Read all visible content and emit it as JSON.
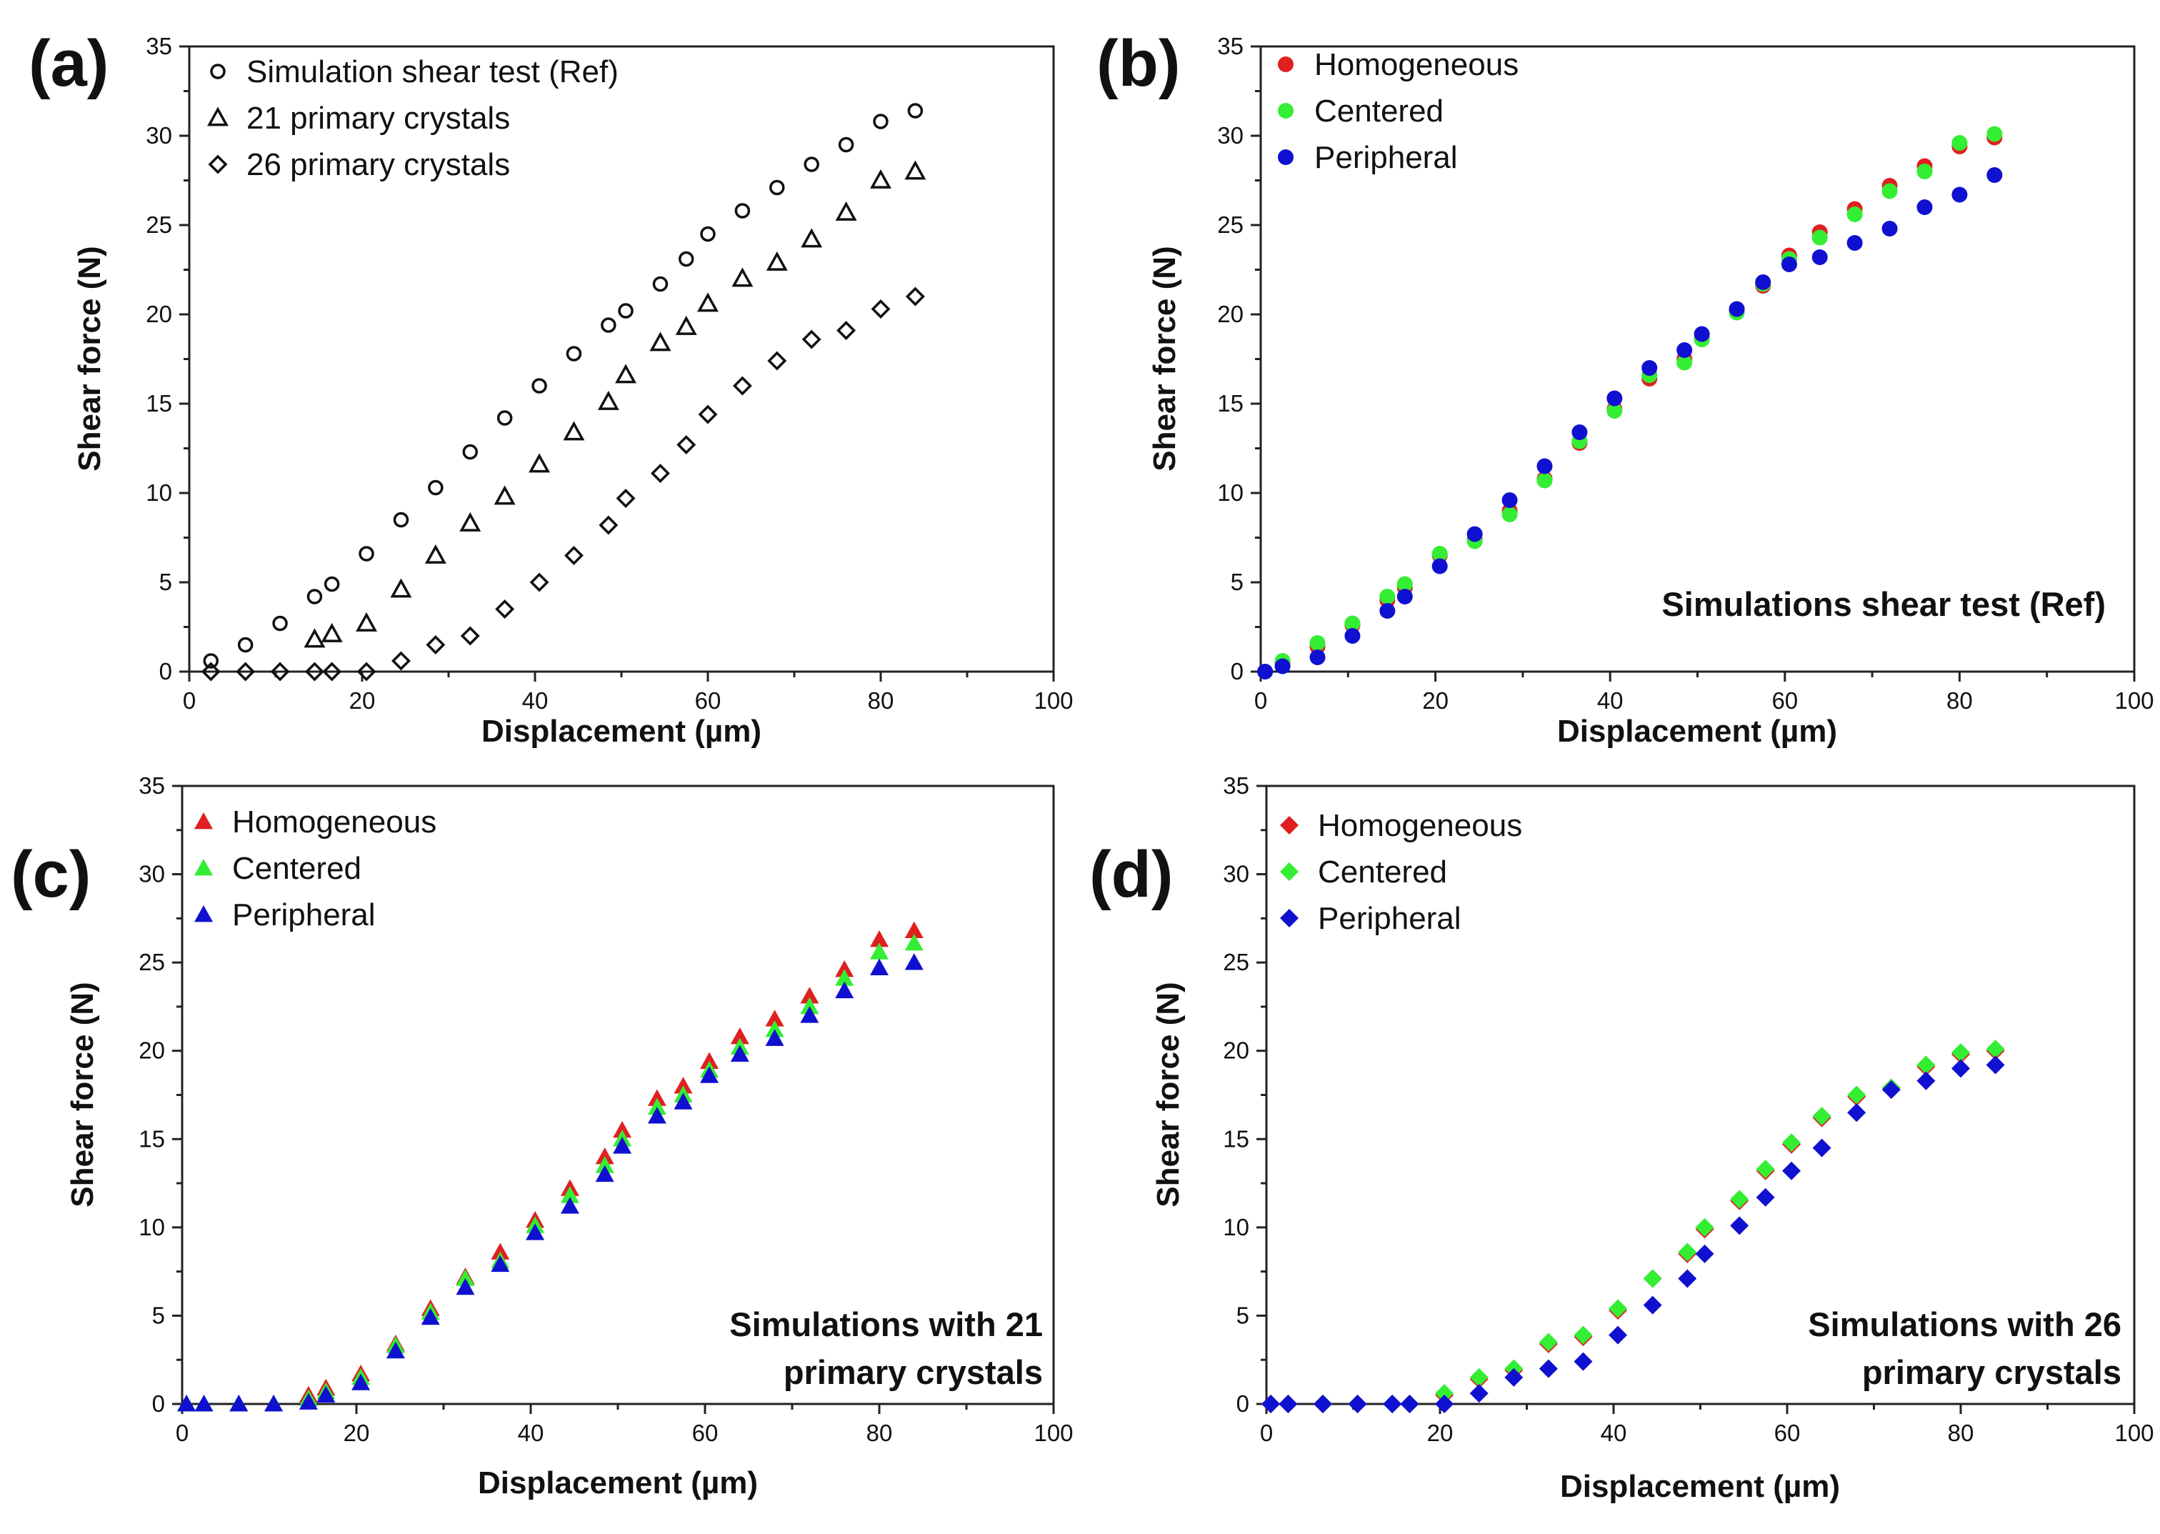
{
  "figure": {
    "colors": {
      "Homogeneous": "#e02020",
      "Centered": "#33ee33",
      "Peripheral": "#1010d0",
      "Simulation shear test (Ref)": "#111111",
      "21 primary crystals": "#111111",
      "26 primary crystals": "#111111"
    }
  },
  "chart_data": [
    {
      "id": "a",
      "panel_label": "(a)",
      "type": "scatter",
      "marker_style": "open",
      "xlabel": "Displacement (µm)",
      "ylabel": "Shear force (N)",
      "xlim": [
        0,
        100
      ],
      "ylim": [
        0,
        35
      ],
      "xticks": [
        "0",
        "20",
        "40",
        "60",
        "80",
        "100"
      ],
      "yticks": [
        "0",
        "5",
        "10",
        "15",
        "20",
        "25",
        "30",
        "35"
      ],
      "legend_position": "top-left",
      "annotation": [],
      "series": [
        {
          "name": "Simulation shear test (Ref)",
          "marker": "circle",
          "x": [
            2.5,
            6.5,
            10.5,
            14.5,
            16.5,
            20.5,
            24.5,
            28.5,
            32.5,
            36.5,
            40.5,
            44.5,
            48.5,
            50.5,
            54.5,
            57.5,
            60,
            64,
            68,
            72,
            76,
            80,
            84
          ],
          "y": [
            0.6,
            1.5,
            2.7,
            4.2,
            4.9,
            6.6,
            8.5,
            10.3,
            12.3,
            14.2,
            16.0,
            17.8,
            19.4,
            20.2,
            21.7,
            23.1,
            24.5,
            25.8,
            27.1,
            28.4,
            29.5,
            30.8,
            31.4
          ]
        },
        {
          "name": "21 primary crystals",
          "marker": "triangle",
          "x": [
            14.5,
            16.5,
            20.5,
            24.5,
            28.5,
            32.5,
            36.5,
            40.5,
            44.5,
            48.5,
            50.5,
            54.5,
            57.5,
            60,
            64,
            68,
            72,
            76,
            80,
            84
          ],
          "y": [
            1.8,
            2.1,
            2.7,
            4.6,
            6.5,
            8.3,
            9.8,
            11.6,
            13.4,
            15.1,
            16.6,
            18.4,
            19.3,
            20.6,
            22.0,
            22.9,
            24.2,
            25.7,
            27.5,
            28.0
          ]
        },
        {
          "name": "26 primary crystals",
          "marker": "diamond",
          "x": [
            2.5,
            6.5,
            10.5,
            14.5,
            16.5,
            20.5,
            24.5,
            28.5,
            32.5,
            36.5,
            40.5,
            44.5,
            48.5,
            50.5,
            54.5,
            57.5,
            60,
            64,
            68,
            72,
            76,
            80,
            84
          ],
          "y": [
            0.0,
            0.0,
            0.0,
            0.0,
            0.0,
            0.0,
            0.6,
            1.5,
            2.0,
            3.5,
            5.0,
            6.5,
            8.2,
            9.7,
            11.1,
            12.7,
            14.4,
            16.0,
            17.4,
            18.6,
            19.1,
            20.3,
            21.0
          ]
        }
      ]
    },
    {
      "id": "b",
      "panel_label": "(b)",
      "type": "scatter",
      "marker_style": "filled",
      "xlabel": "Displacement (µm)",
      "ylabel": "Shear force (N)",
      "xlim": [
        0,
        100
      ],
      "ylim": [
        0,
        35
      ],
      "xticks": [
        "0",
        "20",
        "40",
        "60",
        "80",
        "100"
      ],
      "yticks": [
        "0",
        "5",
        "10",
        "15",
        "20",
        "25",
        "30",
        "35"
      ],
      "legend_position": "top-left",
      "annotation": [
        "Simulations shear test (Ref)"
      ],
      "series": [
        {
          "name": "Homogeneous",
          "marker": "circle",
          "x": [
            0.5,
            2.5,
            6.5,
            10.5,
            14.5,
            16.5,
            20.5,
            24.5,
            28.5,
            32.5,
            36.5,
            40.5,
            44.5,
            48.5,
            50.5,
            54.5,
            57.5,
            60.5,
            64,
            68,
            72,
            76,
            80,
            84
          ],
          "y": [
            0.0,
            0.5,
            1.4,
            2.6,
            4.0,
            4.7,
            6.5,
            7.4,
            9.0,
            10.8,
            12.8,
            14.7,
            16.4,
            17.5,
            18.7,
            20.2,
            21.6,
            23.3,
            24.6,
            25.9,
            27.2,
            28.3,
            29.4,
            29.9
          ]
        },
        {
          "name": "Centered",
          "marker": "circle",
          "x": [
            0.5,
            2.5,
            6.5,
            10.5,
            14.5,
            16.5,
            20.5,
            24.5,
            28.5,
            32.5,
            36.5,
            40.5,
            44.5,
            48.5,
            50.5,
            54.5,
            57.5,
            60.5,
            64,
            68,
            72,
            76,
            80,
            84
          ],
          "y": [
            0.0,
            0.6,
            1.6,
            2.7,
            4.2,
            4.9,
            6.6,
            7.3,
            8.8,
            10.7,
            12.9,
            14.6,
            16.6,
            17.3,
            18.6,
            20.1,
            21.7,
            23.1,
            24.3,
            25.6,
            26.9,
            28.0,
            29.6,
            30.1
          ]
        },
        {
          "name": "Peripheral",
          "marker": "circle",
          "x": [
            0.5,
            2.5,
            6.5,
            10.5,
            14.5,
            16.5,
            20.5,
            24.5,
            28.5,
            32.5,
            36.5,
            40.5,
            44.5,
            48.5,
            50.5,
            54.5,
            57.5,
            60.5,
            64,
            68,
            72,
            76,
            80,
            84
          ],
          "y": [
            0.0,
            0.3,
            0.8,
            2.0,
            3.4,
            4.2,
            5.9,
            7.7,
            9.6,
            11.5,
            13.4,
            15.3,
            17.0,
            18.0,
            18.9,
            20.3,
            21.8,
            22.8,
            23.2,
            24.0,
            24.8,
            26.0,
            26.7,
            27.8
          ]
        }
      ]
    },
    {
      "id": "c",
      "panel_label": "(c)",
      "type": "scatter",
      "marker_style": "filled",
      "xlabel": "Displacement (µm)",
      "ylabel": "Shear force (N)",
      "xlim": [
        0,
        100
      ],
      "ylim": [
        0,
        35
      ],
      "xticks": [
        "0",
        "20",
        "40",
        "60",
        "80",
        "100"
      ],
      "yticks": [
        "0",
        "5",
        "10",
        "15",
        "20",
        "25",
        "30",
        "35"
      ],
      "legend_position": "top-left",
      "annotation": [
        "Simulations with 21",
        "primary crystals"
      ],
      "series": [
        {
          "name": "Homogeneous",
          "marker": "triangle",
          "x": [
            0.5,
            2.5,
            6.5,
            10.5,
            14.5,
            16.5,
            20.5,
            24.5,
            28.5,
            32.5,
            36.5,
            40.5,
            44.5,
            48.5,
            50.5,
            54.5,
            57.5,
            60.5,
            64,
            68,
            72,
            76,
            80,
            84
          ],
          "y": [
            0.0,
            0.0,
            0.0,
            0.0,
            0.5,
            0.9,
            1.7,
            3.4,
            5.4,
            7.2,
            8.6,
            10.4,
            12.2,
            14.0,
            15.5,
            17.3,
            18.0,
            19.4,
            20.8,
            21.8,
            23.1,
            24.6,
            26.3,
            26.8
          ]
        },
        {
          "name": "Centered",
          "marker": "triangle",
          "x": [
            0.5,
            2.5,
            6.5,
            10.5,
            14.5,
            16.5,
            20.5,
            24.5,
            28.5,
            32.5,
            36.5,
            40.5,
            44.5,
            48.5,
            50.5,
            54.5,
            57.5,
            60.5,
            64,
            68,
            72,
            76,
            80,
            84
          ],
          "y": [
            0.0,
            0.0,
            0.0,
            0.0,
            0.3,
            0.7,
            1.5,
            3.3,
            5.2,
            7.1,
            8.1,
            10.1,
            11.8,
            13.5,
            15.0,
            16.8,
            17.5,
            18.9,
            20.2,
            21.2,
            22.5,
            24.1,
            25.6,
            26.1
          ]
        },
        {
          "name": "Peripheral",
          "marker": "triangle",
          "x": [
            0.5,
            2.5,
            6.5,
            10.5,
            14.5,
            16.5,
            20.5,
            24.5,
            28.5,
            32.5,
            36.5,
            40.5,
            44.5,
            48.5,
            50.5,
            54.5,
            57.5,
            60.5,
            64,
            68,
            72,
            76,
            80,
            84
          ],
          "y": [
            0.0,
            0.0,
            0.0,
            0.0,
            0.1,
            0.5,
            1.2,
            3.0,
            4.9,
            6.6,
            7.9,
            9.7,
            11.2,
            13.0,
            14.6,
            16.3,
            17.1,
            18.6,
            19.8,
            20.7,
            22.0,
            23.4,
            24.7,
            25.0
          ]
        }
      ]
    },
    {
      "id": "d",
      "panel_label": "(d)",
      "type": "scatter",
      "marker_style": "filled",
      "xlabel": "Displacement (µm)",
      "ylabel": "Shear force (N)",
      "xlim": [
        0,
        100
      ],
      "ylim": [
        0,
        35
      ],
      "xticks": [
        "0",
        "20",
        "40",
        "60",
        "80",
        "100"
      ],
      "yticks": [
        "0",
        "5",
        "10",
        "15",
        "20",
        "25",
        "30",
        "35"
      ],
      "legend_position": "top-left",
      "annotation": [
        "Simulations with 26",
        "primary crystals"
      ],
      "series": [
        {
          "name": "Homogeneous",
          "marker": "diamond",
          "x": [
            0.5,
            2.5,
            6.5,
            10.5,
            14.5,
            16.5,
            20.5,
            24.5,
            28.5,
            32.5,
            36.5,
            40.5,
            44.5,
            48.5,
            50.5,
            54.5,
            57.5,
            60.5,
            64,
            68,
            72,
            76,
            80,
            84
          ],
          "y": [
            0.0,
            0.0,
            0.0,
            0.0,
            0.0,
            0.0,
            0.5,
            1.4,
            1.9,
            3.4,
            3.8,
            5.3,
            7.1,
            8.5,
            9.9,
            11.5,
            13.2,
            14.7,
            16.2,
            17.4,
            17.9,
            19.1,
            19.8,
            20.0
          ]
        },
        {
          "name": "Centered",
          "marker": "diamond",
          "x": [
            0.5,
            2.5,
            6.5,
            10.5,
            14.5,
            16.5,
            20.5,
            24.5,
            28.5,
            32.5,
            36.5,
            40.5,
            44.5,
            48.5,
            50.5,
            54.5,
            57.5,
            60.5,
            64,
            68,
            72,
            76,
            80,
            84
          ],
          "y": [
            0.0,
            0.0,
            0.0,
            0.0,
            0.0,
            0.0,
            0.6,
            1.5,
            2.0,
            3.5,
            3.9,
            5.4,
            7.1,
            8.6,
            10.0,
            11.6,
            13.3,
            14.8,
            16.3,
            17.5,
            17.9,
            19.2,
            19.9,
            20.1
          ]
        },
        {
          "name": "Peripheral",
          "marker": "diamond",
          "x": [
            0.5,
            2.5,
            6.5,
            10.5,
            14.5,
            16.5,
            20.5,
            24.5,
            28.5,
            32.5,
            36.5,
            40.5,
            44.5,
            48.5,
            50.5,
            54.5,
            57.5,
            60.5,
            64,
            68,
            72,
            76,
            80,
            84
          ],
          "y": [
            0.0,
            0.0,
            0.0,
            0.0,
            0.0,
            0.0,
            0.0,
            0.6,
            1.5,
            2.0,
            2.4,
            3.9,
            5.6,
            7.1,
            8.5,
            10.1,
            11.7,
            13.2,
            14.5,
            16.5,
            17.8,
            18.3,
            19.0,
            19.2
          ]
        }
      ]
    }
  ]
}
